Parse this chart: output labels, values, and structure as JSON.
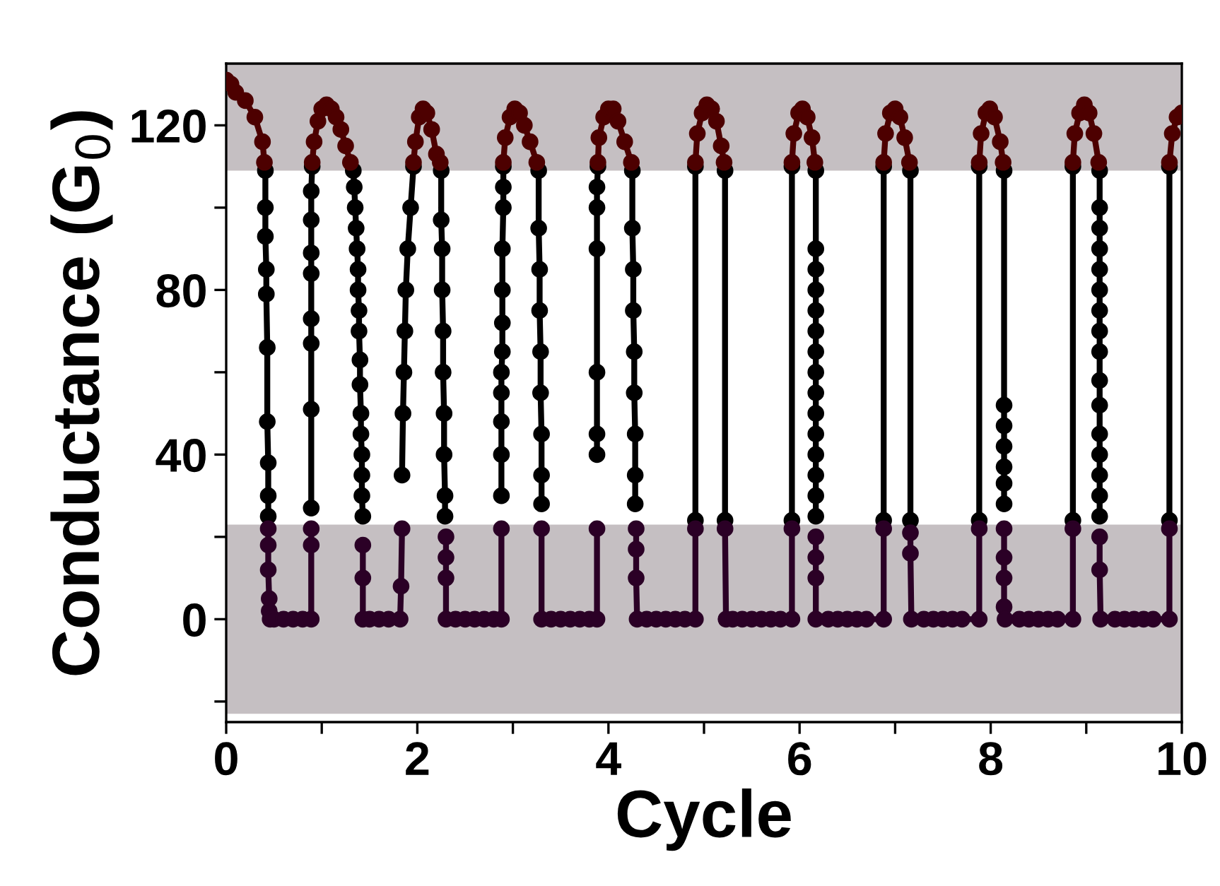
{
  "chart_data": {
    "type": "line",
    "xlabel": "Cycle",
    "ylabel": "Conductance (G$_{0}$)",
    "xlim": [
      0,
      10
    ],
    "ylim": [
      -25,
      135
    ],
    "xticks": [
      0,
      {
        "value": 1,
        "label": null
      },
      2,
      {
        "value": 3,
        "label": null
      },
      4,
      {
        "value": 5,
        "label": null
      },
      6,
      {
        "value": 7,
        "label": null
      },
      8,
      {
        "value": 9,
        "label": null
      },
      10
    ],
    "yticks": [
      {
        "value": -20,
        "label": null
      },
      0,
      {
        "value": 20,
        "label": null
      },
      40,
      {
        "value": 60,
        "label": null
      },
      80,
      {
        "value": 100,
        "label": null
      },
      120
    ],
    "grid": false,
    "marker": "circle",
    "line_style": "solid",
    "bands": [
      {
        "axis": "y",
        "from": -23,
        "to": 23,
        "color": "#c5bfc2"
      },
      {
        "axis": "y",
        "from": 109,
        "to": 135,
        "color": "#c5bfc2"
      }
    ],
    "series": [
      {
        "color": "#000000",
        "x": [
          0.41,
          0.41,
          0.41,
          0.42,
          0.42,
          0.43,
          0.43,
          0.44,
          0.44,
          0.44,
          null,
          0.89,
          0.89,
          0.89,
          0.89,
          0.89,
          0.89,
          0.89,
          0.89,
          0.9,
          null,
          1.33,
          1.34,
          1.35,
          1.36,
          1.37,
          1.38,
          1.38,
          1.39,
          1.39,
          1.4,
          1.4,
          1.41,
          1.41,
          1.42,
          1.42,
          1.42,
          1.43,
          null,
          1.84,
          1.85,
          1.86,
          1.87,
          1.88,
          1.9,
          1.93,
          1.96,
          null,
          2.25,
          2.25,
          2.26,
          2.26,
          2.27,
          2.27,
          2.28,
          2.28,
          2.29,
          2.29,
          null,
          2.88,
          2.88,
          2.88,
          2.88,
          2.88,
          2.89,
          2.89,
          2.89,
          2.89,
          2.9,
          2.9,
          2.9,
          null,
          3.27,
          3.27,
          3.28,
          3.28,
          3.29,
          3.29,
          3.3,
          3.3,
          3.3,
          null,
          3.88,
          3.88,
          3.88,
          3.88,
          3.88,
          3.88,
          3.89,
          null,
          4.25,
          4.25,
          4.26,
          4.26,
          4.27,
          4.27,
          4.28,
          4.28,
          4.28,
          null,
          4.91,
          4.91,
          null,
          5.22,
          5.22,
          null,
          5.92,
          5.92,
          null,
          6.17,
          6.17,
          6.17,
          6.17,
          6.17,
          6.17,
          6.17,
          6.17,
          6.17,
          6.17,
          6.17,
          6.17,
          6.17,
          6.17,
          6.17,
          null,
          6.88,
          6.88,
          null,
          7.16,
          7.16,
          null,
          7.88,
          7.88,
          null,
          8.14,
          8.14,
          8.14,
          8.14,
          8.14,
          8.14,
          8.14,
          null,
          8.86,
          8.86,
          null,
          9.14,
          9.14,
          9.14,
          9.14,
          9.14,
          9.14,
          9.14,
          9.14,
          9.14,
          9.14,
          9.14,
          9.14,
          9.14,
          9.14,
          9.14,
          9.14,
          null,
          9.87,
          9.87
        ],
        "values": [
          109,
          100,
          93,
          85,
          79,
          66,
          48,
          38,
          30,
          25,
          null,
          27,
          51,
          67,
          73,
          84,
          89,
          97,
          104,
          110,
          null,
          109,
          105,
          100,
          95,
          90,
          85,
          80,
          75,
          70,
          63,
          57,
          50,
          45,
          40,
          35,
          30,
          25,
          null,
          35,
          50,
          60,
          70,
          80,
          90,
          100,
          110,
          null,
          109,
          97,
          90,
          80,
          70,
          60,
          50,
          40,
          30,
          25,
          null,
          30,
          40,
          48,
          55,
          60,
          65,
          72,
          80,
          90,
          100,
          105,
          110,
          null,
          109,
          95,
          85,
          75,
          65,
          55,
          45,
          35,
          28,
          null,
          40,
          45,
          60,
          90,
          100,
          105,
          110,
          null,
          109,
          95,
          85,
          75,
          65,
          55,
          45,
          35,
          28,
          null,
          24,
          110,
          null,
          109,
          24,
          null,
          24,
          110,
          null,
          109,
          90,
          85,
          80,
          75,
          70,
          65,
          60,
          55,
          50,
          45,
          40,
          35,
          30,
          25,
          null,
          24,
          110,
          null,
          109,
          24,
          null,
          24,
          110,
          null,
          109,
          52,
          47,
          42,
          37,
          33,
          28,
          null,
          24,
          110,
          null,
          109,
          100,
          95,
          90,
          85,
          80,
          75,
          70,
          65,
          58,
          52,
          45,
          40,
          35,
          30,
          25,
          null,
          24,
          110
        ]
      },
      {
        "color": "#4d0000",
        "x": [
          0,
          0.05,
          0.1,
          0.2,
          0.3,
          0.38,
          0.4,
          null,
          0.9,
          0.92,
          0.96,
          1.0,
          1.05,
          1.1,
          1.15,
          1.2,
          1.25,
          1.3,
          null,
          1.96,
          1.98,
          2.02,
          2.06,
          2.1,
          2.15,
          2.2,
          2.24,
          null,
          2.9,
          2.92,
          2.97,
          3.02,
          3.07,
          3.12,
          3.18,
          3.25,
          null,
          3.89,
          3.9,
          3.95,
          4.0,
          4.05,
          4.1,
          4.17,
          4.24,
          null,
          4.91,
          4.93,
          4.98,
          5.03,
          5.08,
          5.13,
          5.18,
          5.21,
          null,
          5.92,
          5.94,
          5.99,
          6.03,
          6.08,
          6.13,
          6.16,
          null,
          6.88,
          6.9,
          6.95,
          7.0,
          7.05,
          7.1,
          7.15,
          null,
          7.88,
          7.9,
          7.95,
          7.99,
          8.04,
          8.1,
          8.13,
          null,
          8.86,
          8.88,
          8.93,
          8.98,
          9.03,
          9.08,
          9.13,
          null,
          9.87,
          9.9,
          9.95,
          10.0
        ],
        "values": [
          131,
          130,
          128,
          126,
          122,
          116,
          111,
          null,
          111,
          116,
          121,
          124,
          125,
          124,
          122,
          119,
          115,
          111,
          null,
          111,
          116,
          122,
          124,
          123,
          119,
          113,
          111,
          null,
          111,
          117,
          122,
          124,
          123,
          120,
          116,
          111,
          null,
          111,
          117,
          122,
          124,
          124,
          121,
          116,
          111,
          null,
          111,
          118,
          123,
          125,
          124,
          121,
          115,
          111,
          null,
          111,
          118,
          123,
          124,
          122,
          117,
          111,
          null,
          111,
          118,
          123,
          124,
          122,
          117,
          111,
          null,
          111,
          118,
          123,
          124,
          122,
          116,
          111,
          null,
          111,
          118,
          123,
          125,
          123,
          118,
          111,
          null,
          111,
          118,
          122,
          123
        ]
      },
      {
        "color": "#2b0026",
        "x": [
          0.44,
          0.44,
          0.44,
          0.45,
          0.45,
          0.46,
          0.5,
          0.6,
          0.7,
          0.8,
          0.89,
          0.89,
          0.89,
          null,
          1.43,
          1.43,
          1.43,
          1.5,
          1.6,
          1.7,
          1.82,
          1.83,
          1.84,
          null,
          2.3,
          2.3,
          2.3,
          2.3,
          2.4,
          2.5,
          2.6,
          2.7,
          2.8,
          2.88,
          2.88,
          null,
          3.3,
          3.3,
          3.4,
          3.5,
          3.6,
          3.7,
          3.8,
          3.88,
          3.88,
          null,
          4.29,
          4.29,
          4.29,
          4.3,
          4.4,
          4.5,
          4.6,
          4.7,
          4.8,
          4.91,
          4.91,
          null,
          5.22,
          5.23,
          5.3,
          5.4,
          5.5,
          5.6,
          5.7,
          5.8,
          5.92,
          5.92,
          null,
          6.17,
          6.17,
          6.17,
          6.17,
          6.3,
          6.4,
          6.5,
          6.6,
          6.7,
          6.88,
          6.88,
          null,
          7.16,
          7.16,
          7.17,
          7.3,
          7.4,
          7.5,
          7.6,
          7.7,
          7.88,
          7.88,
          null,
          8.14,
          8.14,
          8.14,
          8.14,
          8.15,
          8.3,
          8.4,
          8.5,
          8.6,
          8.7,
          8.86,
          8.86,
          null,
          9.14,
          9.14,
          9.15,
          9.3,
          9.4,
          9.5,
          9.6,
          9.7,
          9.87,
          9.87
        ],
        "values": [
          22,
          18,
          12,
          5,
          2,
          0,
          0,
          0,
          0,
          0,
          0,
          18,
          22,
          null,
          18,
          10,
          0,
          0,
          0,
          0,
          0,
          8,
          22,
          null,
          20,
          15,
          10,
          0,
          0,
          0,
          0,
          0,
          0,
          0,
          22,
          null,
          22,
          0,
          0,
          0,
          0,
          0,
          0,
          0,
          22,
          null,
          22,
          17,
          10,
          0,
          0,
          0,
          0,
          0,
          0,
          0,
          22,
          null,
          22,
          0,
          0,
          0,
          0,
          0,
          0,
          0,
          0,
          22,
          null,
          20,
          15,
          10,
          0,
          0,
          0,
          0,
          0,
          0,
          0,
          22,
          null,
          21,
          16,
          0,
          0,
          0,
          0,
          0,
          0,
          0,
          22,
          null,
          22,
          15,
          10,
          3,
          0,
          0,
          0,
          0,
          0,
          0,
          0,
          22,
          null,
          20,
          12,
          0,
          0,
          0,
          0,
          0,
          0,
          0,
          22
        ]
      }
    ]
  }
}
